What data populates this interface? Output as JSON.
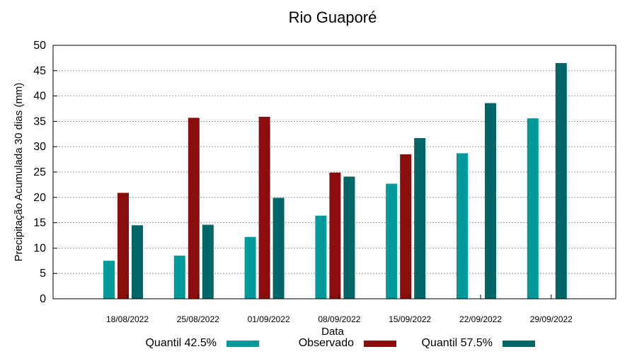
{
  "chart_data": {
    "type": "bar",
    "title": "Rio Guaporé",
    "xlabel": "Data",
    "ylabel": "Precipitação Acumulada 30 dias (mm)",
    "ylim": [
      0,
      50
    ],
    "yticks": [
      0,
      5,
      10,
      15,
      20,
      25,
      30,
      35,
      40,
      45,
      50
    ],
    "grid": true,
    "legend_position": "bottom",
    "categories": [
      "18/08/2022",
      "25/08/2022",
      "01/09/2022",
      "08/09/2022",
      "15/09/2022",
      "22/09/2022",
      "29/09/2022"
    ],
    "series": [
      {
        "name": "Quantil 42.5%",
        "color": "#009999",
        "values": [
          7.5,
          8.5,
          12.2,
          16.4,
          22.7,
          28.7,
          35.6
        ]
      },
      {
        "name": "Observado",
        "color": "#8b0e0e",
        "values": [
          20.9,
          35.7,
          35.9,
          24.9,
          28.5,
          null,
          null
        ]
      },
      {
        "name": "Quantil 57.5%",
        "color": "#006666",
        "values": [
          14.5,
          14.6,
          19.9,
          24.1,
          31.7,
          38.6,
          46.5
        ]
      }
    ]
  }
}
